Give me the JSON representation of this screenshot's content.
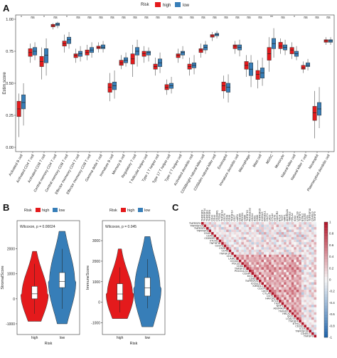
{
  "panels": {
    "a": "A",
    "b": "B",
    "c": "C"
  },
  "colors": {
    "high": "#e41a1c",
    "low": "#377eb8",
    "heat_pos": "#b2182b",
    "heat_neg": "#2166ac"
  },
  "chart_data": [
    {
      "type": "box",
      "panel": "A",
      "legend": {
        "title": "Risk",
        "entries": [
          "high",
          "low"
        ],
        "placement": "top"
      },
      "ylabel": "Estim score",
      "ylim": [
        0,
        1.0
      ],
      "yticks": [
        "0.00",
        "0.25",
        "0.50",
        "0.75",
        "1.00"
      ],
      "categories": [
        "Activated B cell",
        "Activated CD4 T cell",
        "Activated CD8 T cell",
        "Central memory CD4 T cell",
        "Central memory CD8 T cell",
        "Effector memeory CD4 T cell",
        "Effector memeory CD8 T cell",
        "Gamma delta T cell",
        "Immature B cell",
        "Memory B cell",
        "Regulatory T cell",
        "T follicular helper cell",
        "Type 1 T helper cell",
        "Type 17 T helper cell",
        "Type 2 T helper cell",
        "Activated dendritic cell",
        "CD56bright natural killer cell",
        "CD56dim natural killer cell",
        "Eosinophil",
        "Immature dendritic cell",
        "Macrophage",
        "Mast cell",
        "MDSC",
        "Monocyte",
        "Natural killer cell",
        "Natural killer T cell",
        "Neutrophil",
        "Plasmacytoid dendritic cell"
      ],
      "significance": [
        "*",
        "ns",
        "*",
        "ns",
        "*",
        "ns",
        "ns",
        "ns",
        "ns",
        "ns",
        "ns",
        "ns",
        "ns",
        "ns",
        "ns",
        "ns",
        "ns",
        "ns",
        "ns",
        "ns",
        "ns",
        "ns",
        "**",
        "ns",
        "*",
        "ns",
        "ns",
        "ns"
      ],
      "series": [
        {
          "name": "high",
          "boxes": [
            [
              0.08,
              0.24,
              0.3,
              0.36,
              0.42
            ],
            [
              0.66,
              0.71,
              0.74,
              0.77,
              0.81
            ],
            [
              0.53,
              0.63,
              0.67,
              0.71,
              0.78
            ],
            [
              0.92,
              0.94,
              0.95,
              0.96,
              0.97
            ],
            [
              0.74,
              0.79,
              0.81,
              0.83,
              0.88
            ],
            [
              0.66,
              0.7,
              0.72,
              0.73,
              0.77
            ],
            [
              0.68,
              0.72,
              0.74,
              0.76,
              0.8
            ],
            [
              0.74,
              0.77,
              0.78,
              0.79,
              0.82
            ],
            [
              0.36,
              0.43,
              0.47,
              0.5,
              0.58
            ],
            [
              0.61,
              0.64,
              0.66,
              0.68,
              0.72
            ],
            [
              0.55,
              0.65,
              0.69,
              0.73,
              0.8
            ],
            [
              0.66,
              0.71,
              0.73,
              0.75,
              0.79
            ],
            [
              0.56,
              0.61,
              0.63,
              0.65,
              0.7
            ],
            [
              0.41,
              0.45,
              0.47,
              0.49,
              0.53
            ],
            [
              0.66,
              0.7,
              0.72,
              0.73,
              0.77
            ],
            [
              0.56,
              0.61,
              0.63,
              0.65,
              0.7
            ],
            [
              0.7,
              0.74,
              0.76,
              0.77,
              0.81
            ],
            [
              0.83,
              0.86,
              0.87,
              0.88,
              0.9
            ],
            [
              0.38,
              0.44,
              0.48,
              0.51,
              0.56
            ],
            [
              0.73,
              0.77,
              0.79,
              0.8,
              0.83
            ],
            [
              0.55,
              0.61,
              0.64,
              0.67,
              0.72
            ],
            [
              0.46,
              0.53,
              0.57,
              0.6,
              0.68
            ],
            [
              0.59,
              0.68,
              0.73,
              0.78,
              0.86
            ],
            [
              0.73,
              0.77,
              0.79,
              0.82,
              0.85
            ],
            [
              0.69,
              0.73,
              0.76,
              0.78,
              0.82
            ],
            [
              0.58,
              0.61,
              0.62,
              0.64,
              0.67
            ],
            [
              0.07,
              0.21,
              0.27,
              0.32,
              0.44
            ],
            [
              0.8,
              0.82,
              0.83,
              0.84,
              0.86
            ]
          ]
        },
        {
          "name": "low",
          "boxes": [
            [
              0.17,
              0.3,
              0.35,
              0.41,
              0.5
            ],
            [
              0.68,
              0.72,
              0.75,
              0.78,
              0.82
            ],
            [
              0.56,
              0.66,
              0.72,
              0.77,
              0.85
            ],
            [
              0.93,
              0.95,
              0.96,
              0.97,
              0.98
            ],
            [
              0.77,
              0.81,
              0.84,
              0.86,
              0.9
            ],
            [
              0.67,
              0.71,
              0.73,
              0.75,
              0.79
            ],
            [
              0.7,
              0.74,
              0.76,
              0.78,
              0.82
            ],
            [
              0.74,
              0.77,
              0.78,
              0.8,
              0.83
            ],
            [
              0.38,
              0.45,
              0.48,
              0.51,
              0.6
            ],
            [
              0.63,
              0.66,
              0.68,
              0.7,
              0.74
            ],
            [
              0.63,
              0.72,
              0.75,
              0.78,
              0.84
            ],
            [
              0.67,
              0.72,
              0.74,
              0.75,
              0.78
            ],
            [
              0.58,
              0.63,
              0.66,
              0.69,
              0.74
            ],
            [
              0.42,
              0.46,
              0.48,
              0.5,
              0.55
            ],
            [
              0.69,
              0.72,
              0.74,
              0.75,
              0.79
            ],
            [
              0.57,
              0.62,
              0.64,
              0.66,
              0.72
            ],
            [
              0.73,
              0.76,
              0.78,
              0.8,
              0.83
            ],
            [
              0.85,
              0.87,
              0.88,
              0.89,
              0.91
            ],
            [
              0.35,
              0.43,
              0.47,
              0.5,
              0.57
            ],
            [
              0.71,
              0.76,
              0.78,
              0.8,
              0.84
            ],
            [
              0.47,
              0.56,
              0.61,
              0.66,
              0.72
            ],
            [
              0.48,
              0.54,
              0.58,
              0.62,
              0.7
            ],
            [
              0.7,
              0.77,
              0.81,
              0.85,
              0.93
            ],
            [
              0.72,
              0.76,
              0.78,
              0.8,
              0.84
            ],
            [
              0.68,
              0.71,
              0.73,
              0.75,
              0.79
            ],
            [
              0.6,
              0.63,
              0.64,
              0.66,
              0.69
            ],
            [
              0.15,
              0.25,
              0.3,
              0.35,
              0.47
            ],
            [
              0.8,
              0.82,
              0.83,
              0.84,
              0.86
            ]
          ]
        }
      ]
    },
    {
      "type": "violin",
      "panel": "B-left",
      "legend": {
        "title": "Risk",
        "entries": [
          "high",
          "low"
        ],
        "placement": "top"
      },
      "annotation": "Wilcoxon, p = 0.00024",
      "ylabel": "StromalScore",
      "xlabel": "Risk",
      "categories": [
        "high",
        "low"
      ],
      "yticks": [
        "-1000",
        "0",
        "1000",
        "2000"
      ],
      "ylim": [
        -1200,
        2900
      ],
      "series": [
        {
          "name": "high",
          "box": [
            -600,
            0,
            200,
            500,
            1400
          ],
          "violin_range": [
            -900,
            1900
          ]
        },
        {
          "name": "low",
          "box": [
            -400,
            450,
            700,
            1050,
            2000
          ],
          "violin_range": [
            -1000,
            2700
          ]
        }
      ]
    },
    {
      "type": "violin",
      "panel": "B-right",
      "legend": {
        "title": "Risk",
        "entries": [
          "high",
          "low"
        ],
        "placement": "top"
      },
      "annotation": "Wilcoxon, p = 0.045",
      "ylabel": "ImmuneScore",
      "xlabel": "Risk",
      "categories": [
        "high",
        "low"
      ],
      "yticks": [
        "-1000",
        "0",
        "1000",
        "2000",
        "3000"
      ],
      "ylim": [
        -1300,
        3700
      ],
      "series": [
        {
          "name": "high",
          "box": [
            -500,
            100,
            400,
            900,
            1700
          ],
          "violin_range": [
            -800,
            2600
          ]
        },
        {
          "name": "low",
          "box": [
            -300,
            300,
            700,
            1200,
            2100
          ],
          "violin_range": [
            -1200,
            3200
          ]
        }
      ]
    },
    {
      "type": "heatmap",
      "panel": "C",
      "genes": [
        "TNFRSF9",
        "TNFRSF14",
        "TNFRSF4",
        "TNFRSF8",
        "CD44",
        "CD40",
        "CD200R1",
        "VTCN1",
        "TNFSF18",
        "CD276",
        "CD28",
        "CD48",
        "TNFSF14",
        "CD27",
        "LAIR1",
        "CD160",
        "PDCD1",
        "CD86",
        "TNFSF15",
        "PDCD1LG2",
        "CD244",
        "IDO1",
        "CD80",
        "TNFRSF25",
        "ICOSLG",
        "KIR3DL1",
        "CD274",
        "LAG3",
        "CTLA4",
        "CD70",
        "HAVCR2",
        "BTLA",
        "TIGIT",
        "NRP1",
        "ADORA2A",
        "TMIGD2",
        "HHLA2",
        "IDO2",
        "LGALS9",
        "TNFSF4",
        "BTNL2",
        "CD200",
        "ICOS",
        "TNFRSF18",
        "CD40LG",
        "TNFSF9"
      ],
      "scale": [
        "1",
        "0.8",
        "0.6",
        "0.4",
        "0.2",
        "0",
        "-0.2",
        "-0.4",
        "-0.6",
        "-0.8",
        "-1"
      ],
      "range": [
        -1,
        1
      ]
    }
  ]
}
